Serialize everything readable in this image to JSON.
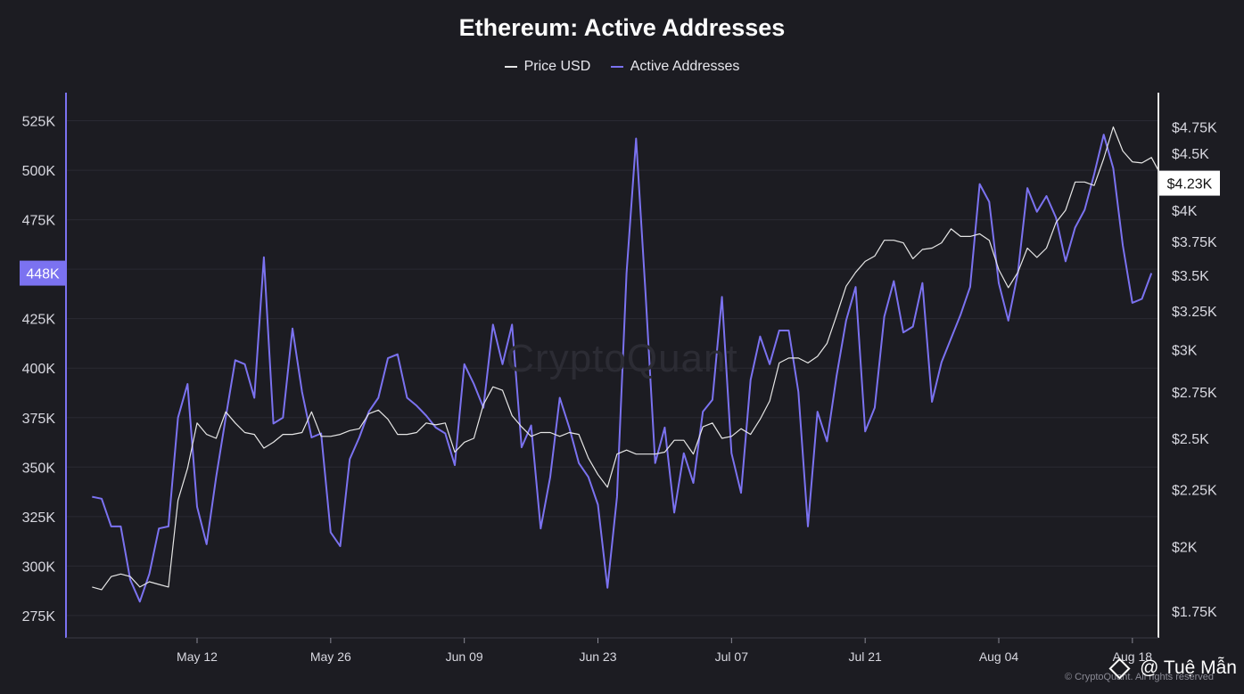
{
  "chart_data": {
    "type": "line",
    "title": "Ethereum: Active Addresses",
    "legend": [
      "Price USD",
      "Active Addresses"
    ],
    "legend_position": "top-center",
    "grid": true,
    "colors": {
      "price": "#e6e6e6",
      "active": "#7b72f0",
      "background": "#1c1c22",
      "grid": "#2a2a33"
    },
    "x_tick_labels": [
      "May 12",
      "May 26",
      "Jun 09",
      "Jun 23",
      "Jul 07",
      "Jul 21",
      "Aug 04",
      "Aug 18"
    ],
    "x_range": [
      "2025-05-01",
      "2025-08-20"
    ],
    "left_axis": {
      "ticks": [
        275000,
        300000,
        325000,
        350000,
        375000,
        400000,
        425000,
        450000,
        475000,
        500000,
        525000
      ],
      "tick_labels": [
        "275K",
        "300K",
        "325K",
        "350K",
        "375K",
        "400K",
        "425K",
        "",
        "475K",
        "500K",
        "525K"
      ],
      "ylim": [
        270000,
        532000
      ]
    },
    "right_axis": {
      "scale": "log",
      "ticks": [
        1750,
        2000,
        2250,
        2500,
        2750,
        3000,
        3250,
        3500,
        3750,
        4000,
        4500,
        4750
      ],
      "tick_labels": [
        "$1.75K",
        "$2K",
        "$2.25K",
        "$2.5K",
        "$2.75K",
        "$3K",
        "$3.25K",
        "$3.5K",
        "$3.75K",
        "$4K",
        "$4.5K",
        "$4.75K"
      ],
      "ylim": [
        1700,
        4950
      ]
    },
    "current_labels": {
      "active": "448K",
      "price": "$4.23K",
      "active_value": 448000,
      "price_value": 4230
    },
    "series": [
      {
        "name": "Active Addresses",
        "axis": "left",
        "points": [
          [
            "2025-05-01",
            335000
          ],
          [
            "2025-05-02",
            334000
          ],
          [
            "2025-05-03",
            320000
          ],
          [
            "2025-05-04",
            320000
          ],
          [
            "2025-05-05",
            293000
          ],
          [
            "2025-05-06",
            282000
          ],
          [
            "2025-05-07",
            296000
          ],
          [
            "2025-05-08",
            319000
          ],
          [
            "2025-05-09",
            320000
          ],
          [
            "2025-05-10",
            375000
          ],
          [
            "2025-05-11",
            392000
          ],
          [
            "2025-05-12",
            330000
          ],
          [
            "2025-05-13",
            311000
          ],
          [
            "2025-05-14",
            345000
          ],
          [
            "2025-05-15",
            375000
          ],
          [
            "2025-05-16",
            404000
          ],
          [
            "2025-05-17",
            402000
          ],
          [
            "2025-05-18",
            385000
          ],
          [
            "2025-05-19",
            456000
          ],
          [
            "2025-05-20",
            372000
          ],
          [
            "2025-05-21",
            375000
          ],
          [
            "2025-05-22",
            420000
          ],
          [
            "2025-05-23",
            388000
          ],
          [
            "2025-05-24",
            365000
          ],
          [
            "2025-05-25",
            367000
          ],
          [
            "2025-05-26",
            317000
          ],
          [
            "2025-05-27",
            310000
          ],
          [
            "2025-05-28",
            354000
          ],
          [
            "2025-05-29",
            365000
          ],
          [
            "2025-05-30",
            378000
          ],
          [
            "2025-05-31",
            385000
          ],
          [
            "2025-06-01",
            405000
          ],
          [
            "2025-06-02",
            407000
          ],
          [
            "2025-06-03",
            385000
          ],
          [
            "2025-06-04",
            381000
          ],
          [
            "2025-06-05",
            376000
          ],
          [
            "2025-06-06",
            370000
          ],
          [
            "2025-06-07",
            367000
          ],
          [
            "2025-06-08",
            351000
          ],
          [
            "2025-06-09",
            402000
          ],
          [
            "2025-06-10",
            392000
          ],
          [
            "2025-06-11",
            380000
          ],
          [
            "2025-06-12",
            422000
          ],
          [
            "2025-06-13",
            402000
          ],
          [
            "2025-06-14",
            422000
          ],
          [
            "2025-06-15",
            360000
          ],
          [
            "2025-06-16",
            371000
          ],
          [
            "2025-06-17",
            319000
          ],
          [
            "2025-06-18",
            345000
          ],
          [
            "2025-06-19",
            385000
          ],
          [
            "2025-06-20",
            370000
          ],
          [
            "2025-06-21",
            352000
          ],
          [
            "2025-06-22",
            345000
          ],
          [
            "2025-06-23",
            331000
          ],
          [
            "2025-06-24",
            289000
          ],
          [
            "2025-06-25",
            335000
          ],
          [
            "2025-06-26",
            448000
          ],
          [
            "2025-06-27",
            516000
          ],
          [
            "2025-06-28",
            437000
          ],
          [
            "2025-06-29",
            352000
          ],
          [
            "2025-06-30",
            370000
          ],
          [
            "2025-07-01",
            327000
          ],
          [
            "2025-07-02",
            357000
          ],
          [
            "2025-07-03",
            342000
          ],
          [
            "2025-07-04",
            378000
          ],
          [
            "2025-07-05",
            384000
          ],
          [
            "2025-07-06",
            436000
          ],
          [
            "2025-07-07",
            357000
          ],
          [
            "2025-07-08",
            337000
          ],
          [
            "2025-07-09",
            394000
          ],
          [
            "2025-07-10",
            416000
          ],
          [
            "2025-07-11",
            402000
          ],
          [
            "2025-07-12",
            419000
          ],
          [
            "2025-07-13",
            419000
          ],
          [
            "2025-07-14",
            388000
          ],
          [
            "2025-07-15",
            320000
          ],
          [
            "2025-07-16",
            378000
          ],
          [
            "2025-07-17",
            363000
          ],
          [
            "2025-07-18",
            396000
          ],
          [
            "2025-07-19",
            424000
          ],
          [
            "2025-07-20",
            441000
          ],
          [
            "2025-07-21",
            368000
          ],
          [
            "2025-07-22",
            380000
          ],
          [
            "2025-07-23",
            426000
          ],
          [
            "2025-07-24",
            444000
          ],
          [
            "2025-07-25",
            418000
          ],
          [
            "2025-07-26",
            421000
          ],
          [
            "2025-07-27",
            443000
          ],
          [
            "2025-07-28",
            383000
          ],
          [
            "2025-07-29",
            403000
          ],
          [
            "2025-07-30",
            415000
          ],
          [
            "2025-07-31",
            427000
          ],
          [
            "2025-08-01",
            441000
          ],
          [
            "2025-08-02",
            493000
          ],
          [
            "2025-08-03",
            484000
          ],
          [
            "2025-08-04",
            443000
          ],
          [
            "2025-08-05",
            424000
          ],
          [
            "2025-08-06",
            448000
          ],
          [
            "2025-08-07",
            491000
          ],
          [
            "2025-08-08",
            479000
          ],
          [
            "2025-08-09",
            487000
          ],
          [
            "2025-08-10",
            476000
          ],
          [
            "2025-08-11",
            454000
          ],
          [
            "2025-08-12",
            471000
          ],
          [
            "2025-08-13",
            480000
          ],
          [
            "2025-08-14",
            498000
          ],
          [
            "2025-08-15",
            518000
          ],
          [
            "2025-08-16",
            501000
          ],
          [
            "2025-08-17",
            462000
          ],
          [
            "2025-08-18",
            433000
          ],
          [
            "2025-08-19",
            435000
          ],
          [
            "2025-08-20",
            448000
          ]
        ]
      },
      {
        "name": "Price USD",
        "axis": "right",
        "points": [
          [
            "2025-05-01",
            1840
          ],
          [
            "2025-05-02",
            1830
          ],
          [
            "2025-05-03",
            1880
          ],
          [
            "2025-05-04",
            1890
          ],
          [
            "2025-05-05",
            1880
          ],
          [
            "2025-05-06",
            1840
          ],
          [
            "2025-05-07",
            1860
          ],
          [
            "2025-05-08",
            1850
          ],
          [
            "2025-05-09",
            1840
          ],
          [
            "2025-05-10",
            2200
          ],
          [
            "2025-05-11",
            2350
          ],
          [
            "2025-05-12",
            2580
          ],
          [
            "2025-05-13",
            2520
          ],
          [
            "2025-05-14",
            2500
          ],
          [
            "2025-05-15",
            2640
          ],
          [
            "2025-05-16",
            2580
          ],
          [
            "2025-05-17",
            2530
          ],
          [
            "2025-05-18",
            2520
          ],
          [
            "2025-05-19",
            2450
          ],
          [
            "2025-05-20",
            2480
          ],
          [
            "2025-05-21",
            2520
          ],
          [
            "2025-05-22",
            2520
          ],
          [
            "2025-05-23",
            2530
          ],
          [
            "2025-05-24",
            2640
          ],
          [
            "2025-05-25",
            2510
          ],
          [
            "2025-05-26",
            2510
          ],
          [
            "2025-05-27",
            2520
          ],
          [
            "2025-05-28",
            2540
          ],
          [
            "2025-05-29",
            2550
          ],
          [
            "2025-05-30",
            2630
          ],
          [
            "2025-05-31",
            2650
          ],
          [
            "2025-06-01",
            2600
          ],
          [
            "2025-06-02",
            2520
          ],
          [
            "2025-06-03",
            2520
          ],
          [
            "2025-06-04",
            2530
          ],
          [
            "2025-06-05",
            2580
          ],
          [
            "2025-06-06",
            2570
          ],
          [
            "2025-06-07",
            2580
          ],
          [
            "2025-06-08",
            2430
          ],
          [
            "2025-06-09",
            2480
          ],
          [
            "2025-06-10",
            2500
          ],
          [
            "2025-06-11",
            2680
          ],
          [
            "2025-06-12",
            2780
          ],
          [
            "2025-06-13",
            2760
          ],
          [
            "2025-06-14",
            2620
          ],
          [
            "2025-06-15",
            2560
          ],
          [
            "2025-06-16",
            2510
          ],
          [
            "2025-06-17",
            2530
          ],
          [
            "2025-06-18",
            2530
          ],
          [
            "2025-06-19",
            2510
          ],
          [
            "2025-06-20",
            2530
          ],
          [
            "2025-06-21",
            2520
          ],
          [
            "2025-06-22",
            2400
          ],
          [
            "2025-06-23",
            2320
          ],
          [
            "2025-06-24",
            2260
          ],
          [
            "2025-06-25",
            2420
          ],
          [
            "2025-06-26",
            2440
          ],
          [
            "2025-06-27",
            2420
          ],
          [
            "2025-06-28",
            2420
          ],
          [
            "2025-06-29",
            2420
          ],
          [
            "2025-06-30",
            2430
          ],
          [
            "2025-07-01",
            2490
          ],
          [
            "2025-07-02",
            2490
          ],
          [
            "2025-07-03",
            2420
          ],
          [
            "2025-07-04",
            2560
          ],
          [
            "2025-07-05",
            2580
          ],
          [
            "2025-07-06",
            2500
          ],
          [
            "2025-07-07",
            2510
          ],
          [
            "2025-07-08",
            2550
          ],
          [
            "2025-07-09",
            2520
          ],
          [
            "2025-07-10",
            2600
          ],
          [
            "2025-07-11",
            2700
          ],
          [
            "2025-07-12",
            2920
          ],
          [
            "2025-07-13",
            2950
          ],
          [
            "2025-07-14",
            2950
          ],
          [
            "2025-07-15",
            2920
          ],
          [
            "2025-07-16",
            2960
          ],
          [
            "2025-07-17",
            3040
          ],
          [
            "2025-07-18",
            3220
          ],
          [
            "2025-07-19",
            3420
          ],
          [
            "2025-07-20",
            3520
          ],
          [
            "2025-07-21",
            3600
          ],
          [
            "2025-07-22",
            3640
          ],
          [
            "2025-07-23",
            3760
          ],
          [
            "2025-07-24",
            3760
          ],
          [
            "2025-07-25",
            3740
          ],
          [
            "2025-07-26",
            3620
          ],
          [
            "2025-07-27",
            3690
          ],
          [
            "2025-07-28",
            3700
          ],
          [
            "2025-07-29",
            3740
          ],
          [
            "2025-07-30",
            3850
          ],
          [
            "2025-07-31",
            3790
          ],
          [
            "2025-08-01",
            3790
          ],
          [
            "2025-08-02",
            3810
          ],
          [
            "2025-08-03",
            3760
          ],
          [
            "2025-08-04",
            3540
          ],
          [
            "2025-08-05",
            3410
          ],
          [
            "2025-08-06",
            3520
          ],
          [
            "2025-08-07",
            3700
          ],
          [
            "2025-08-08",
            3630
          ],
          [
            "2025-08-09",
            3700
          ],
          [
            "2025-08-10",
            3900
          ],
          [
            "2025-08-11",
            4000
          ],
          [
            "2025-08-12",
            4240
          ],
          [
            "2025-08-13",
            4240
          ],
          [
            "2025-08-14",
            4210
          ],
          [
            "2025-08-15",
            4450
          ],
          [
            "2025-08-16",
            4750
          ],
          [
            "2025-08-17",
            4520
          ],
          [
            "2025-08-18",
            4420
          ],
          [
            "2025-08-19",
            4410
          ],
          [
            "2025-08-20",
            4460
          ],
          [
            "2025-08-21",
            4300
          ],
          [
            "2025-08-22",
            4230
          ]
        ]
      }
    ]
  },
  "watermark": "CryptoQuant",
  "copyright": "© CryptoQuant. All rights reserved",
  "credit": "@ Tuệ Mẫn"
}
